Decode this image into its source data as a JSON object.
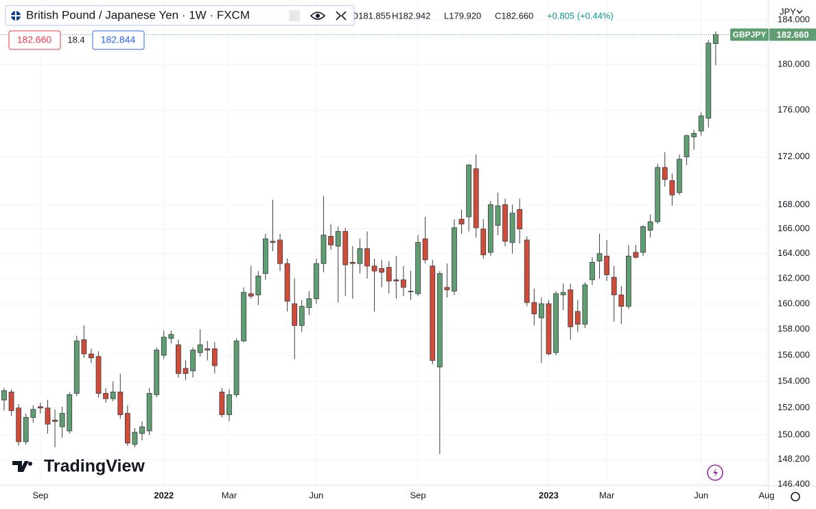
{
  "header": {
    "title": "British Pound / Japanese Yen · 1W · FXCM",
    "ohlc": [
      "O181.855",
      "H182.942",
      "L179.920",
      "C182.660",
      "+0.805 (+0.44%)"
    ],
    "sell": "182.660",
    "spread": "18.4",
    "buy": "182.844",
    "currency": "JPY"
  },
  "watermark": "TradingView",
  "chart_data": {
    "type": "candlestick",
    "log_scale": true,
    "grid": true,
    "up_color": "#5e9e72",
    "down_color": "#cf4b3a",
    "border_color": "#3a3a3a",
    "symbol": "GBPJPY",
    "last_price_label": "182.660",
    "categories": [
      null,
      null,
      null,
      null,
      null,
      "Sep",
      null,
      null,
      null,
      null,
      null,
      null,
      null,
      null,
      null,
      null,
      null,
      null,
      null,
      null,
      null,
      null,
      "2022",
      null,
      null,
      null,
      null,
      null,
      null,
      null,
      null,
      "Mar",
      null,
      null,
      null,
      null,
      null,
      null,
      null,
      null,
      null,
      null,
      null,
      "Jun",
      null,
      null,
      null,
      null,
      null,
      null,
      null,
      null,
      null,
      null,
      null,
      null,
      null,
      "Sep",
      null,
      null,
      null,
      null,
      null,
      null,
      null,
      null,
      null,
      null,
      null,
      null,
      null,
      null,
      null,
      null,
      null,
      "2023",
      null,
      null,
      null,
      null,
      null,
      null,
      null,
      "Mar",
      null,
      null,
      null,
      null,
      null,
      null,
      null,
      null,
      null,
      null,
      null,
      null,
      "Jun",
      null,
      null,
      null,
      null,
      null,
      null,
      null,
      null,
      "Aug"
    ],
    "open": [
      152.6,
      153.2,
      152.0,
      149.5,
      151.3,
      152.1,
      152.0,
      151.1,
      150.6,
      150.3,
      153.1,
      157.2,
      156.1,
      155.9,
      153.1,
      152.7,
      153.2,
      151.6,
      149.3,
      150.1,
      150.3,
      153.0,
      156.0,
      157.3,
      156.8,
      155.0,
      154.8,
      156.2,
      156.5,
      156.5,
      153.2,
      151.5,
      153.0,
      157.1,
      160.8,
      160.7,
      162.4,
      165.0,
      165.1,
      163.2,
      160.0,
      158.3,
      159.7,
      160.4,
      163.2,
      165.4,
      164.6,
      165.8,
      163.3,
      163.2,
      164.4,
      163.0,
      162.8,
      162.9,
      161.9,
      161.9,
      161.0,
      160.8,
      165.2,
      163.0,
      155.1,
      161.3,
      161.0,
      166.8,
      167.0,
      171.0,
      166.0,
      164.1,
      166.3,
      168.0,
      164.9,
      167.6,
      165.1,
      160.1,
      158.9,
      160.0,
      156.2,
      160.7,
      161.1,
      159.4,
      158.4,
      161.9,
      163.4,
      163.8,
      162.1,
      160.7,
      159.8,
      164.1,
      164.1,
      165.9,
      166.6,
      171.1,
      170.0,
      169.0,
      172.0,
      173.7,
      174.2,
      175.3,
      181.855,
      null,
      null,
      null,
      null,
      null,
      null,
      null
    ],
    "high": [
      153.5,
      153.4,
      152.3,
      151.6,
      152.2,
      152.4,
      152.6,
      151.9,
      152.1,
      153.2,
      157.5,
      158.3,
      156.5,
      156.3,
      153.5,
      154.0,
      154.6,
      152.2,
      150.5,
      151.0,
      153.5,
      156.6,
      157.9,
      157.9,
      157.2,
      155.6,
      156.6,
      158.0,
      157.1,
      157.0,
      153.5,
      153.4,
      157.3,
      161.3,
      163.0,
      162.6,
      165.6,
      168.4,
      165.6,
      163.6,
      162.0,
      160.3,
      161.0,
      163.6,
      168.7,
      166.4,
      166.2,
      166.1,
      164.6,
      165.2,
      165.8,
      163.6,
      163.5,
      163.4,
      163.8,
      163.0,
      162.6,
      165.5,
      167.0,
      163.5,
      162.6,
      163.2,
      166.8,
      167.6,
      171.4,
      172.2,
      166.8,
      168.3,
      169.0,
      168.5,
      168.0,
      168.5,
      165.4,
      161.2,
      160.5,
      160.3,
      161.0,
      161.6,
      161.6,
      160.3,
      161.7,
      163.7,
      165.6,
      165.1,
      163.0,
      161.4,
      164.7,
      164.7,
      166.3,
      167.2,
      171.4,
      172.4,
      170.6,
      172.2,
      173.9,
      174.3,
      175.8,
      182.2,
      182.942,
      null,
      null,
      null,
      null,
      null,
      null,
      null
    ],
    "low": [
      151.8,
      151.4,
      149.2,
      149.3,
      150.9,
      151.6,
      150.1,
      149.1,
      149.8,
      150.1,
      152.9,
      155.8,
      155.4,
      152.8,
      152.4,
      152.5,
      151.2,
      149.2,
      149.1,
      149.6,
      150.0,
      152.8,
      155.7,
      156.9,
      154.3,
      154.1,
      154.3,
      155.9,
      155.6,
      154.6,
      151.3,
      151.0,
      152.8,
      157.0,
      160.4,
      159.9,
      161.9,
      164.2,
      162.6,
      159.4,
      155.7,
      157.8,
      159.1,
      160.0,
      162.5,
      164.3,
      160.1,
      160.6,
      160.4,
      162.4,
      162.0,
      159.4,
      161.3,
      160.8,
      160.4,
      160.6,
      160.3,
      160.6,
      163.2,
      155.3,
      148.6,
      160.5,
      160.7,
      165.6,
      165.8,
      165.3,
      163.6,
      163.8,
      165.5,
      164.6,
      164.0,
      164.8,
      159.8,
      158.3,
      155.4,
      156.0,
      156.0,
      159.5,
      157.2,
      157.8,
      158.1,
      161.5,
      162.0,
      161.8,
      158.6,
      158.4,
      159.6,
      163.6,
      163.8,
      165.3,
      166.4,
      169.5,
      167.9,
      168.8,
      171.3,
      172.6,
      173.8,
      174.5,
      179.92,
      null,
      null,
      null,
      null,
      null,
      null,
      null
    ],
    "close": [
      153.3,
      151.8,
      149.5,
      151.3,
      151.9,
      152.0,
      150.8,
      151.0,
      151.6,
      153.0,
      157.1,
      156.1,
      155.8,
      153.1,
      152.7,
      153.2,
      151.5,
      149.4,
      150.2,
      150.6,
      153.1,
      156.4,
      157.4,
      157.6,
      154.6,
      154.6,
      156.4,
      156.8,
      156.4,
      155.2,
      151.5,
      153.0,
      157.1,
      160.9,
      160.6,
      162.2,
      165.2,
      164.9,
      163.2,
      160.2,
      158.3,
      159.8,
      160.4,
      163.2,
      165.5,
      164.7,
      165.8,
      163.1,
      163.2,
      164.4,
      163.0,
      162.6,
      162.5,
      161.8,
      161.8,
      161.3,
      161.0,
      164.9,
      163.5,
      155.6,
      162.4,
      161.1,
      166.1,
      166.4,
      171.3,
      166.1,
      163.9,
      168.0,
      167.9,
      165.0,
      167.3,
      166.0,
      160.1,
      159.2,
      160.0,
      156.1,
      160.8,
      160.9,
      158.2,
      158.4,
      161.5,
      163.3,
      164.0,
      162.3,
      160.7,
      159.8,
      163.8,
      163.7,
      166.2,
      166.6,
      171.1,
      170.1,
      168.8,
      171.8,
      173.8,
      174.0,
      175.5,
      181.9,
      182.66,
      null,
      null,
      null,
      null,
      null,
      null,
      null
    ],
    "ylim": [
      146.3,
      185.8
    ],
    "yticks": [
      {
        "value": 146.4,
        "label": "146.400"
      },
      {
        "value": 148.2,
        "label": "148.200"
      },
      {
        "value": 150,
        "label": "150.000"
      },
      {
        "value": 152,
        "label": "152.000"
      },
      {
        "value": 154,
        "label": "154.000"
      },
      {
        "value": 156,
        "label": "156.000"
      },
      {
        "value": 158,
        "label": "158.000"
      },
      {
        "value": 160,
        "label": "160.000"
      },
      {
        "value": 162,
        "label": "162.000"
      },
      {
        "value": 164,
        "label": "164.000"
      },
      {
        "value": 166,
        "label": "166.000"
      },
      {
        "value": 168,
        "label": "168.000"
      },
      {
        "value": 172,
        "label": "172.000"
      },
      {
        "value": 176,
        "label": "176.000"
      },
      {
        "value": 180,
        "label": "180.000"
      },
      {
        "value": 184,
        "label": "184.000"
      }
    ]
  }
}
